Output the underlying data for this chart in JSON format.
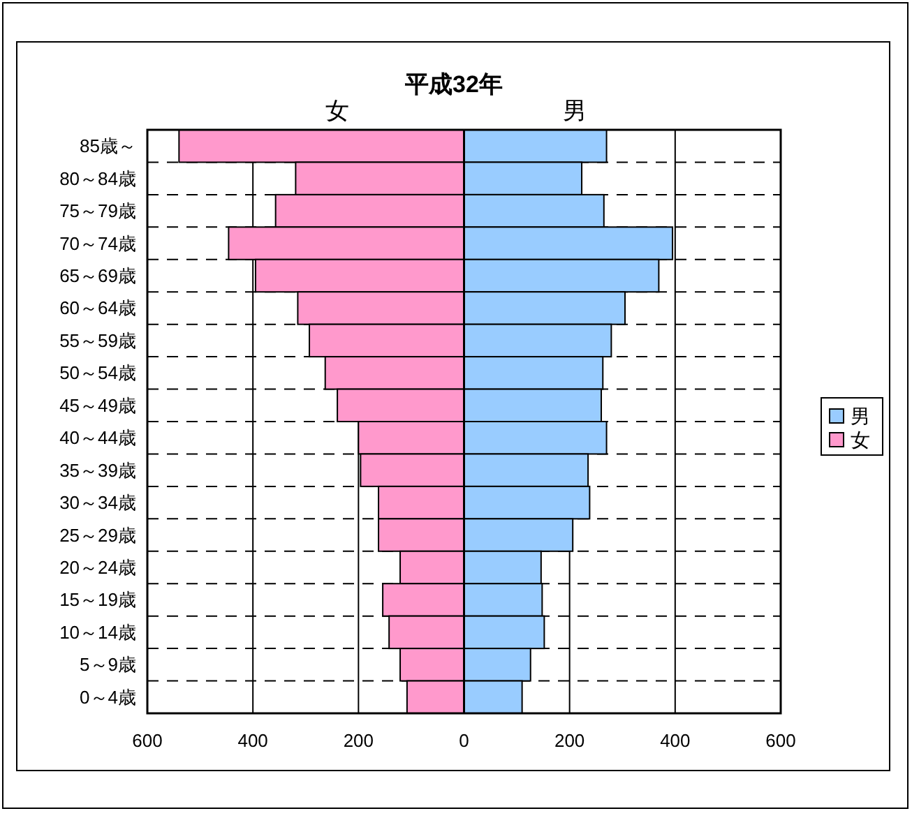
{
  "chart_data": {
    "type": "bar",
    "orientation": "horizontal",
    "stacked": true,
    "title": "平成32年",
    "categories": [
      "85歳～",
      "80～84歳",
      "75～79歳",
      "70～74歳",
      "65～69歳",
      "60～64歳",
      "55～59歳",
      "50～54歳",
      "45～49歳",
      "40～44歳",
      "35～39歳",
      "30～34歳",
      "25～29歳",
      "20～24歳",
      "15～19歳",
      "10～14歳",
      "5～9歳",
      "0～4歳"
    ],
    "series": [
      {
        "name": "男",
        "color": "#99ccff",
        "values": [
          270,
          223,
          265,
          395,
          369,
          305,
          279,
          263,
          260,
          270,
          235,
          238,
          206,
          146,
          148,
          152,
          126,
          110
        ]
      },
      {
        "name": "女",
        "color": "#ff99cc",
        "values": [
          -540,
          -319,
          -357,
          -446,
          -395,
          -315,
          -293,
          -263,
          -240,
          -200,
          -196,
          -162,
          -162,
          -121,
          -154,
          -142,
          -121,
          -108
        ]
      }
    ],
    "annotations": [
      {
        "text": "女",
        "x": -240,
        "y": "85歳～"
      },
      {
        "text": "男",
        "x": 210,
        "y": "85歳～"
      }
    ],
    "xlim": [
      -600,
      600
    ],
    "xticks": [
      {
        "value": -600,
        "label": "600"
      },
      {
        "value": -400,
        "label": "400"
      },
      {
        "value": -200,
        "label": "200"
      },
      0,
      200,
      400,
      600
    ],
    "grid": true,
    "legend": "right"
  }
}
